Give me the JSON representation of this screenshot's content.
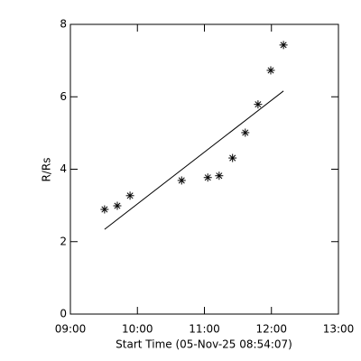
{
  "chart_data": {
    "type": "scatter",
    "x_label": "Start Time (05-Nov-25 08:54:07)",
    "y_label": "R/Rs",
    "xlim": [
      9,
      13
    ],
    "xticks": [
      {
        "value": 9,
        "label": "09:00"
      },
      {
        "value": 10,
        "label": "10:00"
      },
      {
        "value": 11,
        "label": "11:00"
      },
      {
        "value": 12,
        "label": "12:00"
      },
      {
        "value": 13,
        "label": "13:00"
      }
    ],
    "ylim": [
      0,
      8
    ],
    "yticks": [
      0,
      2,
      4,
      6,
      8
    ],
    "color": "#000000",
    "points": {
      "x": [
        9.51,
        9.7,
        9.89,
        10.66,
        11.05,
        11.22,
        11.42,
        11.61,
        11.8,
        11.99,
        12.18
      ],
      "values": [
        2.89,
        2.99,
        3.27,
        3.69,
        3.77,
        3.82,
        4.31,
        5.01,
        5.79,
        6.73,
        7.43
      ]
    },
    "fit_line": {
      "x": [
        9.51,
        12.18
      ],
      "values": [
        2.34,
        6.16
      ]
    }
  }
}
